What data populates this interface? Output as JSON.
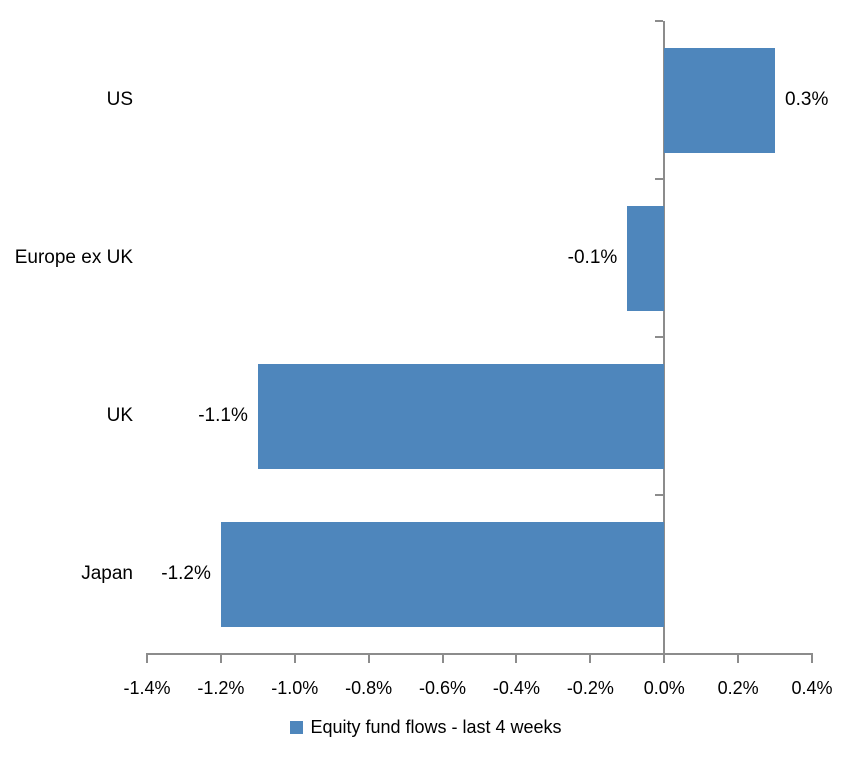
{
  "chart_data": {
    "type": "bar",
    "orientation": "horizontal",
    "title": "",
    "categories": [
      "US",
      "Europe ex UK",
      "UK",
      "Japan"
    ],
    "values": [
      0.3,
      -0.1,
      -1.1,
      -1.2
    ],
    "data_labels": [
      "0.3%",
      "-0.1%",
      "-1.1%",
      "-1.2%"
    ],
    "series_name": "Equity fund flows - last 4 weeks",
    "xlim": [
      -1.4,
      0.4
    ],
    "x_tick_step": 0.2,
    "x_ticks": [
      {
        "value": -1.4,
        "label": "-1.4%"
      },
      {
        "value": -1.2,
        "label": "-1.2%"
      },
      {
        "value": -1.0,
        "label": "-1.0%"
      },
      {
        "value": -0.8,
        "label": "-0.8%"
      },
      {
        "value": -0.6,
        "label": "-0.6%"
      },
      {
        "value": -0.4,
        "label": "-0.4%"
      },
      {
        "value": -0.2,
        "label": "-0.2%"
      },
      {
        "value": 0.0,
        "label": "0.0%"
      },
      {
        "value": 0.2,
        "label": "0.2%"
      },
      {
        "value": 0.4,
        "label": "0.4%"
      }
    ],
    "grid": false,
    "legend_position": "bottom",
    "bar_color": "#4E86BC",
    "axis_color": "#8C8C8C",
    "text_color": "#000000",
    "background_color": "#FFFFFF"
  }
}
